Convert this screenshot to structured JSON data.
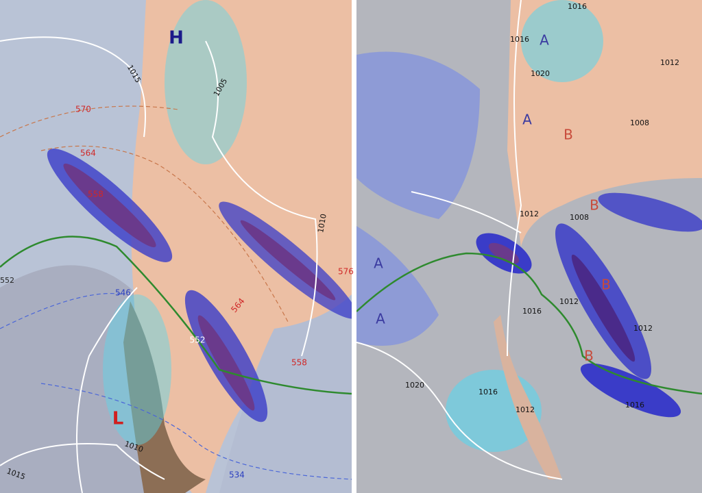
{
  "left_panel": {
    "centers": [
      "H",
      "L"
    ],
    "labels": [
      "1015",
      "570",
      "564",
      "558",
      "1005",
      "1010",
      "576",
      "564",
      "552",
      "558",
      "546",
      "1010",
      "1015",
      "534",
      "552"
    ]
  },
  "right_panel": {
    "centers": [
      "A",
      "A",
      "B",
      "B",
      "A",
      "A",
      "B",
      "B"
    ],
    "labels": [
      "1016",
      "1016",
      "1020",
      "1008",
      "1012",
      "1008",
      "1012",
      "1012",
      "1016",
      "1012",
      "1020",
      "1016",
      "1012",
      "1016"
    ]
  }
}
